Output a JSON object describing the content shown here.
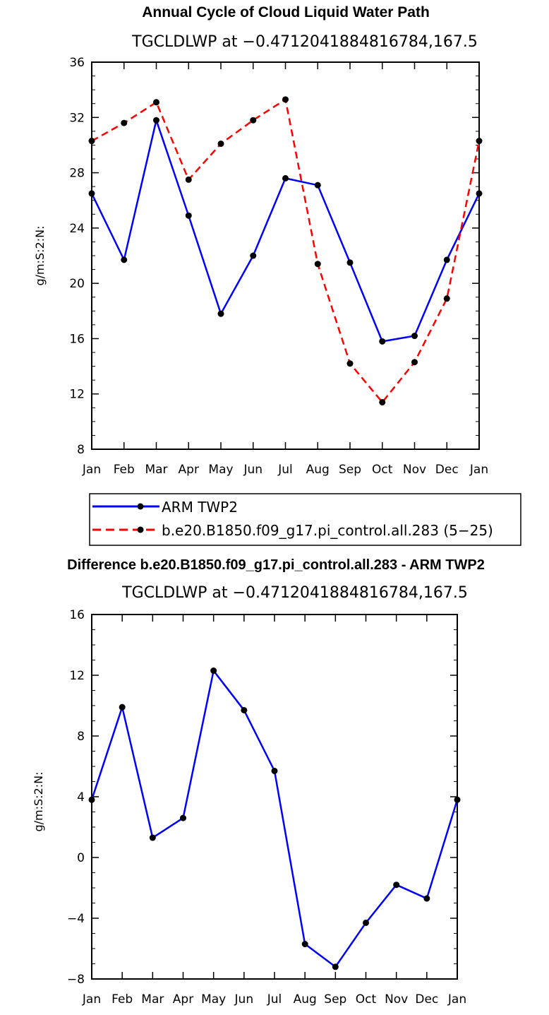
{
  "chart_data": [
    {
      "type": "line",
      "title": "Annual Cycle of Cloud Liquid Water Path",
      "subtitle": "TGCLDLWP at −0.4712041884816784,167.5",
      "xlabel": "",
      "ylabel": "g/m:S:2:N:",
      "categories": [
        "Jan",
        "Feb",
        "Mar",
        "Apr",
        "May",
        "Jun",
        "Jul",
        "Aug",
        "Sep",
        "Oct",
        "Nov",
        "Dec",
        "Jan"
      ],
      "ylim": [
        8,
        36
      ],
      "yticks": [
        "8",
        "12",
        "16",
        "20",
        "24",
        "28",
        "32",
        "36"
      ],
      "series": [
        {
          "name": "ARM TWP2",
          "color": "#0000ff",
          "dash": "solid",
          "values": [
            26.5,
            21.7,
            31.8,
            24.9,
            17.8,
            22.0,
            27.6,
            27.1,
            21.5,
            15.8,
            16.2,
            21.7,
            26.5
          ]
        },
        {
          "name": "b.e20.B1850.f09_g17.pi_control.all.283 (5−25)",
          "color": "#ff0000",
          "dash": "dashed",
          "values": [
            30.3,
            31.6,
            33.1,
            27.5,
            30.1,
            31.8,
            33.3,
            21.4,
            14.2,
            11.4,
            14.3,
            18.9,
            30.3
          ]
        }
      ]
    },
    {
      "type": "line",
      "title": "Difference b.e20.B1850.f09_g17.pi_control.all.283 - ARM TWP2",
      "subtitle": "TGCLDLWP at −0.4712041884816784,167.5",
      "xlabel": "",
      "ylabel": "g/m:S:2:N:",
      "categories": [
        "Jan",
        "Feb",
        "Mar",
        "Apr",
        "May",
        "Jun",
        "Jul",
        "Aug",
        "Sep",
        "Oct",
        "Nov",
        "Dec",
        "Jan"
      ],
      "ylim": [
        -8,
        16
      ],
      "yticks": [
        "−8",
        "−4",
        "0",
        "4",
        "8",
        "12",
        "16"
      ],
      "series": [
        {
          "name": "Difference",
          "color": "#0000ff",
          "dash": "solid",
          "values": [
            3.8,
            9.9,
            1.3,
            2.6,
            12.3,
            9.7,
            5.7,
            -5.7,
            -7.2,
            -4.3,
            -1.8,
            -2.7,
            3.8
          ]
        }
      ]
    }
  ]
}
